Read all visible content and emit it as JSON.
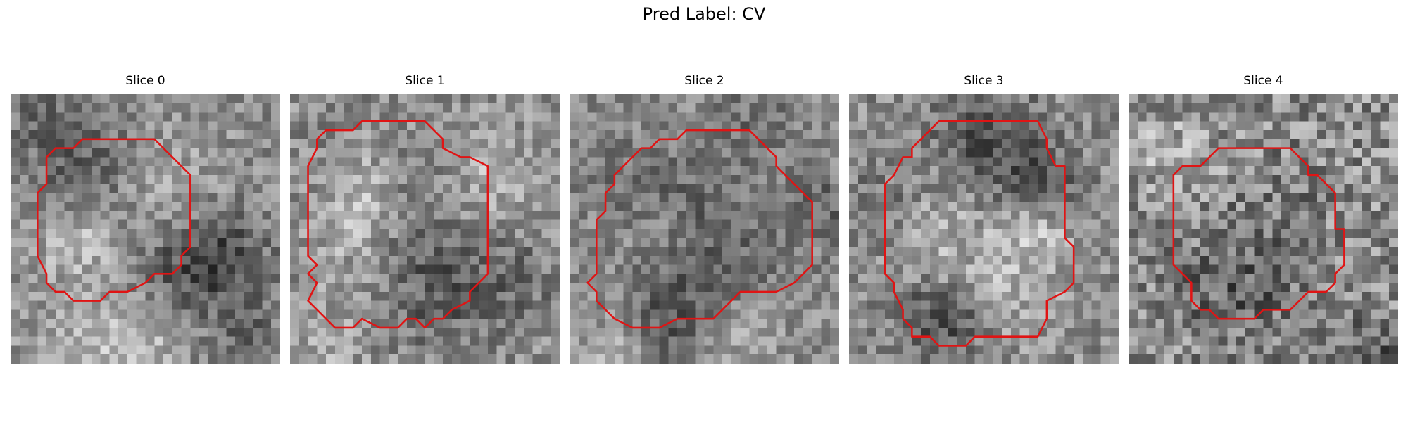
{
  "figure": {
    "title": "Pred Label: CV",
    "contour_color": "#e01414"
  },
  "slices": [
    {
      "title": "Slice 0"
    },
    {
      "title": "Slice 1"
    },
    {
      "title": "Slice 2"
    },
    {
      "title": "Slice 3"
    },
    {
      "title": "Slice 4"
    }
  ]
}
